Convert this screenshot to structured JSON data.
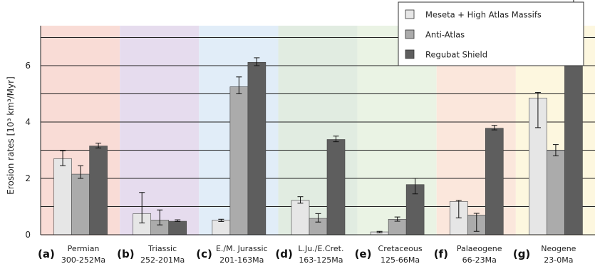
{
  "chart_data": {
    "type": "bar",
    "ylabel": "Erosion rates [10³ km³/Myr]",
    "ylim": [
      0,
      7.4
    ],
    "yticks": [
      0,
      2,
      4,
      6
    ],
    "gridlines": [
      1,
      2,
      3,
      4,
      5,
      6,
      7
    ],
    "grid": "horizontal",
    "legend_position": "top-right",
    "periods": [
      {
        "letter": "(a)",
        "name": "Permian",
        "range": "300-252Ma",
        "color": "#f9dcd6"
      },
      {
        "letter": "(b)",
        "name": "Triassic",
        "range": "252-201Ma",
        "color": "#e6dcee"
      },
      {
        "letter": "(c)",
        "name": "E./M. Jurassic",
        "range": "201-163Ma",
        "color": "#e1edf8"
      },
      {
        "letter": "(d)",
        "name": "L.Ju./E.Cret.",
        "range": "163-125Ma",
        "color": "#e1ece1"
      },
      {
        "letter": "(e)",
        "name": "Cretaceous",
        "range": "125-66Ma",
        "color": "#eaf3e4"
      },
      {
        "letter": "(f)",
        "name": "Palaeogene",
        "range": "66-23Ma",
        "color": "#fbe7dc"
      },
      {
        "letter": "(g)",
        "name": "Neogene",
        "range": "23-0Ma",
        "color": "#fdf7df"
      }
    ],
    "series": [
      {
        "name": "Meseta + High Atlas Massifs",
        "color": "#e6e6e6",
        "values": [
          2.7,
          0.75,
          0.52,
          1.22,
          0.1,
          1.18,
          4.85
        ],
        "err_low": [
          2.45,
          0.42,
          0.47,
          1.12,
          0.07,
          0.6,
          3.8
        ],
        "err_high": [
          2.98,
          1.5,
          0.55,
          1.35,
          0.12,
          1.22,
          5.05
        ]
      },
      {
        "name": "Anti-Atlas",
        "color": "#ababab",
        "values": [
          2.15,
          0.52,
          5.25,
          0.58,
          0.55,
          0.7,
          3.0
        ],
        "err_low": [
          2.0,
          0.35,
          5.0,
          0.45,
          0.48,
          0.12,
          2.8
        ],
        "err_high": [
          2.45,
          0.88,
          5.6,
          0.75,
          0.63,
          0.76,
          3.2
        ]
      },
      {
        "name": "Regubat Shield",
        "color": "#5e5e5e",
        "values": [
          3.15,
          0.48,
          6.12,
          3.38,
          1.78,
          3.78,
          7.35
        ],
        "err_low": [
          3.08,
          0.47,
          6.0,
          3.3,
          1.45,
          3.72,
          6.3
        ],
        "err_high": [
          3.25,
          0.53,
          6.28,
          3.5,
          2.0,
          3.88,
          8.5
        ]
      }
    ]
  }
}
